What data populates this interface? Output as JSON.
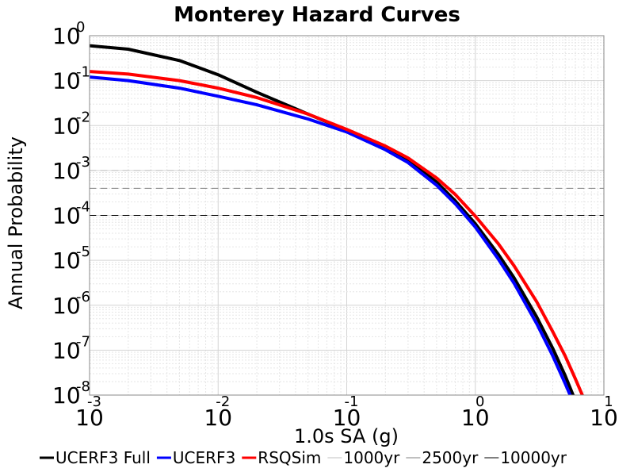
{
  "chart_data": {
    "type": "line",
    "title": "Monterey Hazard Curves",
    "xlabel": "1.0s SA (g)",
    "ylabel": "Annual Probability",
    "x_scale": "log",
    "y_scale": "log",
    "xlim": [
      0.001,
      10
    ],
    "ylim": [
      1e-08,
      1
    ],
    "grid": true,
    "legend_position": "bottom",
    "x_ticks": [
      {
        "base": "10",
        "exp": "-3",
        "value": 0.001
      },
      {
        "base": "10",
        "exp": "-2",
        "value": 0.01
      },
      {
        "base": "10",
        "exp": "-1",
        "value": 0.1
      },
      {
        "base": "10",
        "exp": "0",
        "value": 1
      },
      {
        "base": "10",
        "exp": "1",
        "value": 10
      }
    ],
    "y_ticks": [
      {
        "base": "10",
        "exp": "0",
        "value": 1
      },
      {
        "base": "10",
        "exp": "-1",
        "value": 0.1
      },
      {
        "base": "10",
        "exp": "-2",
        "value": 0.01
      },
      {
        "base": "10",
        "exp": "-3",
        "value": 0.001
      },
      {
        "base": "10",
        "exp": "-4",
        "value": 0.0001
      },
      {
        "base": "10",
        "exp": "-5",
        "value": 1e-05
      },
      {
        "base": "10",
        "exp": "-6",
        "value": 1e-06
      },
      {
        "base": "10",
        "exp": "-7",
        "value": 1e-07
      },
      {
        "base": "10",
        "exp": "-8",
        "value": 1e-08
      }
    ],
    "series": [
      {
        "name": "UCERF3 Full",
        "color": "#000000",
        "style": "solid",
        "x": [
          0.001,
          0.002,
          0.005,
          0.01,
          0.02,
          0.05,
          0.1,
          0.2,
          0.3,
          0.5,
          0.7,
          1.0,
          1.5,
          2.0,
          3.0,
          4.0,
          5.0,
          6.0
        ],
        "y": [
          0.6,
          0.5,
          0.28,
          0.135,
          0.055,
          0.018,
          0.0079,
          0.0033,
          0.0017,
          0.00055,
          0.00021,
          6.5e-05,
          1.4e-05,
          4.1e-06,
          5.5e-07,
          1.1e-07,
          2.7e-08,
          7.5e-09
        ]
      },
      {
        "name": "UCERF3",
        "color": "#0000ff",
        "style": "solid",
        "x": [
          0.001,
          0.002,
          0.005,
          0.01,
          0.02,
          0.05,
          0.1,
          0.2,
          0.3,
          0.5,
          0.7,
          1.0,
          1.5,
          2.0,
          3.0,
          4.0,
          5.0,
          5.6
        ],
        "y": [
          0.12,
          0.1,
          0.068,
          0.045,
          0.029,
          0.014,
          0.0072,
          0.0029,
          0.0015,
          0.00047,
          0.00018,
          5.5e-05,
          1.1e-05,
          3.1e-06,
          3.9e-07,
          7.5e-08,
          1.8e-08,
          8.5e-09
        ]
      },
      {
        "name": "RSQSim",
        "color": "#ff0000",
        "style": "solid",
        "x": [
          0.001,
          0.002,
          0.005,
          0.01,
          0.02,
          0.05,
          0.1,
          0.2,
          0.3,
          0.5,
          0.7,
          1.0,
          1.5,
          2.0,
          3.0,
          4.0,
          5.0,
          6.0,
          7.0
        ],
        "y": [
          0.16,
          0.14,
          0.1,
          0.068,
          0.042,
          0.018,
          0.0082,
          0.0035,
          0.0019,
          0.00068,
          0.00029,
          9.6e-05,
          2.4e-05,
          7.6e-06,
          1.2e-06,
          2.6e-07,
          7.4e-08,
          2.3e-08,
          8.2e-09
        ]
      },
      {
        "name": "1000yr",
        "color": "#c0c0c0",
        "style": "dashed",
        "x": [
          0.001,
          10
        ],
        "y": [
          0.001,
          0.001
        ]
      },
      {
        "name": "2500yr",
        "color": "#808080",
        "style": "dashed",
        "x": [
          0.001,
          10
        ],
        "y": [
          0.0004,
          0.0004
        ]
      },
      {
        "name": "10000yr",
        "color": "#000000",
        "style": "dashed",
        "x": [
          0.001,
          10
        ],
        "y": [
          0.0001,
          0.0001
        ]
      }
    ]
  }
}
